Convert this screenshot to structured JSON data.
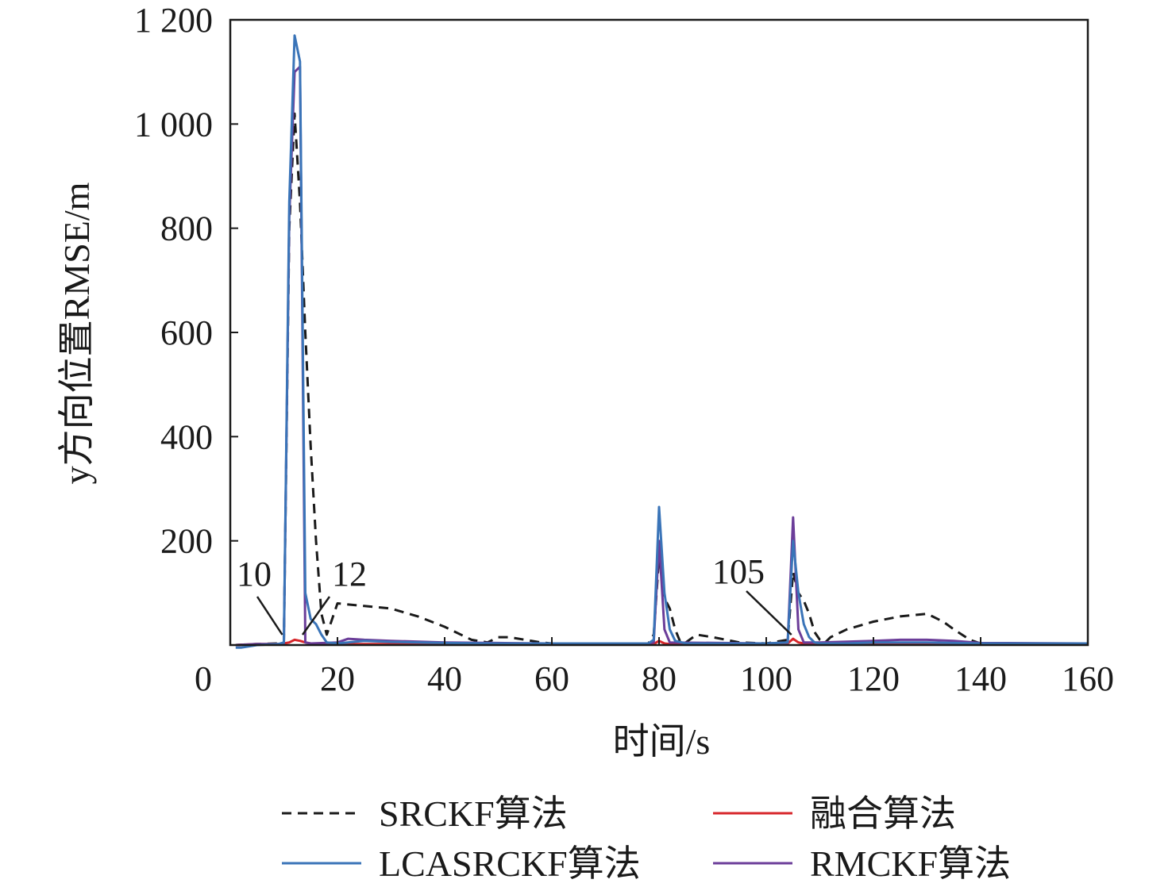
{
  "chart_data": {
    "type": "line",
    "title": "",
    "xlabel": "时间/s",
    "ylabel": "y方向位置RMSE/m",
    "xlim": [
      0,
      160
    ],
    "ylim": [
      0,
      1200
    ],
    "xticks": [
      0,
      20,
      40,
      60,
      80,
      100,
      120,
      140,
      160
    ],
    "xtick_labels": [
      "0",
      "20",
      "40",
      "60",
      "80",
      "100",
      "120",
      "140",
      "160"
    ],
    "yticks": [
      200,
      400,
      600,
      800,
      1000,
      1200
    ],
    "ytick_labels": [
      "200",
      "400",
      "600",
      "800",
      "1 000",
      "1 200"
    ],
    "grid": false,
    "legend_position": "bottom",
    "annotations": [
      {
        "text": "10",
        "x": 10,
        "y": 0
      },
      {
        "text": "12",
        "x": 12,
        "y": 0
      },
      {
        "text": "105",
        "x": 105,
        "y": 0
      }
    ],
    "series": [
      {
        "name": "SRCKF算法",
        "color": "#1a1a1a",
        "style": "dashed",
        "x": [
          1,
          5,
          9,
          10,
          11,
          12,
          13,
          14,
          15,
          16,
          17,
          18,
          19,
          20,
          25,
          30,
          35,
          40,
          45,
          48,
          50,
          52,
          55,
          58,
          60,
          70,
          78,
          79,
          80,
          81,
          82,
          83,
          84,
          85,
          87,
          90,
          95,
          100,
          104,
          105,
          106,
          107,
          108,
          109,
          110,
          111,
          112,
          115,
          120,
          125,
          130,
          131,
          133,
          135,
          138,
          140,
          150,
          160
        ],
        "y": [
          0,
          2,
          3,
          5,
          800,
          1020,
          850,
          600,
          380,
          200,
          60,
          20,
          50,
          80,
          75,
          70,
          55,
          35,
          10,
          5,
          15,
          15,
          10,
          5,
          3,
          3,
          3,
          20,
          170,
          90,
          70,
          30,
          5,
          5,
          20,
          15,
          5,
          3,
          10,
          140,
          100,
          85,
          60,
          25,
          10,
          5,
          15,
          30,
          45,
          55,
          60,
          55,
          45,
          30,
          10,
          3,
          3,
          3
        ]
      },
      {
        "name": "融合算法",
        "color": "#d7262b",
        "style": "solid",
        "x": [
          1,
          5,
          9,
          10,
          11,
          12,
          13,
          14,
          15,
          20,
          40,
          60,
          79,
          80,
          81,
          82,
          100,
          104,
          105,
          106,
          107,
          120,
          140,
          160
        ],
        "y": [
          0,
          2,
          2,
          3,
          5,
          10,
          8,
          5,
          3,
          2,
          2,
          2,
          2,
          8,
          3,
          2,
          2,
          3,
          12,
          5,
          3,
          3,
          2,
          2
        ]
      },
      {
        "name": "LCASRCKF算法",
        "color": "#3a74b8",
        "style": "solid",
        "x": [
          1,
          2,
          5,
          9,
          10,
          11,
          12,
          13,
          14,
          15,
          16,
          17,
          18,
          20,
          25,
          30,
          40,
          50,
          60,
          70,
          78,
          79,
          80,
          81,
          82,
          83,
          85,
          90,
          100,
          104,
          105,
          106,
          107,
          108,
          109,
          110,
          115,
          120,
          125,
          130,
          135,
          140,
          150,
          160
        ],
        "y": [
          -5,
          -5,
          0,
          2,
          5,
          850,
          1170,
          1120,
          100,
          50,
          40,
          20,
          5,
          3,
          8,
          6,
          4,
          3,
          3,
          3,
          3,
          10,
          265,
          100,
          30,
          8,
          3,
          3,
          3,
          5,
          200,
          100,
          40,
          15,
          5,
          3,
          3,
          5,
          5,
          5,
          4,
          3,
          3,
          3
        ]
      },
      {
        "name": "RMCKF算法",
        "color": "#6b3d99",
        "style": "solid",
        "x": [
          1,
          5,
          9,
          10,
          11,
          12,
          13,
          14,
          15,
          20,
          22,
          25,
          30,
          40,
          50,
          60,
          78,
          79,
          80,
          81,
          82,
          100,
          104,
          105,
          106,
          107,
          110,
          120,
          125,
          130,
          135,
          140,
          160
        ],
        "y": [
          0,
          2,
          2,
          3,
          820,
          1100,
          1110,
          5,
          3,
          5,
          12,
          10,
          8,
          5,
          4,
          3,
          3,
          5,
          200,
          30,
          5,
          3,
          5,
          245,
          30,
          5,
          5,
          8,
          10,
          10,
          8,
          4,
          3
        ]
      }
    ]
  }
}
